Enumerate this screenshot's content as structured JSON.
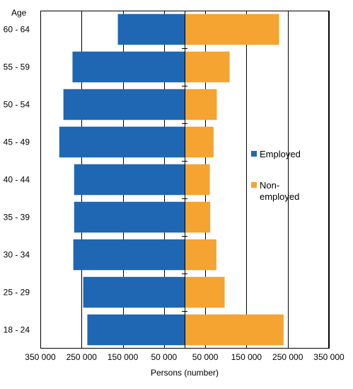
{
  "chart_data": {
    "type": "bar",
    "orientation": "horizontal-population-pyramid",
    "title": "",
    "xlabel": "Persons (number)",
    "ylabel": "Age",
    "categories": [
      "60 - 64",
      "55 - 59",
      "50 - 54",
      "45 - 49",
      "40 - 44",
      "35 - 39",
      "30 - 34",
      "25 - 29",
      "18 - 24"
    ],
    "series": [
      {
        "name": "Employed",
        "side": "left",
        "color": "#1f67b2",
        "values": [
          162000,
          272000,
          294000,
          304000,
          268000,
          268000,
          270000,
          246000,
          236000
        ]
      },
      {
        "name": "Non-employed",
        "legend_lines": [
          "Non-",
          "employed"
        ],
        "side": "right",
        "color": "#f5a331",
        "values": [
          229000,
          109000,
          78000,
          70000,
          61000,
          62000,
          77000,
          97000,
          240000
        ]
      }
    ],
    "xlim": [
      -350000,
      350000
    ],
    "xticks": [
      -350000,
      -250000,
      -150000,
      -50000,
      50000,
      150000,
      250000,
      350000
    ],
    "xtick_labels": [
      "350 000",
      "250 000",
      "150 000",
      "50 000",
      "50 000",
      "150 000",
      "250 000",
      "350 000"
    ],
    "grid": "vertical major lines",
    "legend_position": "right"
  }
}
